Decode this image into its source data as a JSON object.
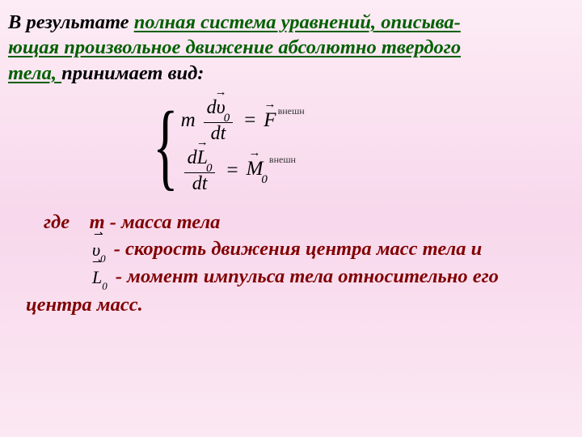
{
  "intro": {
    "lead": "В результате ",
    "ul1": "полная система уравнений, описыва-",
    "ul2": "ющая произвольное движение абсолютно твердого ",
    "ul3": "тела,",
    "tail_space": " ",
    "tail": "принимает вид:"
  },
  "equations": {
    "brace": "{",
    "eq1": {
      "m": "m",
      "frac_num_d": "d",
      "frac_num_sym": "υ",
      "frac_num_sub": "0",
      "frac_den": "dt",
      "eq": "=",
      "rhs_sym": "F",
      "rhs_sup": "внешн"
    },
    "eq2": {
      "frac_num_d": "d",
      "frac_num_sym": "L",
      "frac_num_sub": "0",
      "frac_den": "dt",
      "eq": "=",
      "rhs_sym": "M",
      "rhs_sub": "0",
      "rhs_sup": "внешн"
    }
  },
  "legend": {
    "where": "где",
    "m": "m",
    "l1": " - масса тела",
    "sym_v": "υ",
    "sym_v_sub": "0",
    "l2": " -  скорость движения центра масс тела и",
    "sym_L": "L",
    "sym_L_sub": "0",
    "l3": " -  момент импульса тела относительно его",
    "l4": "центра масс."
  },
  "style": {
    "bg_top": "#fcecf5",
    "bg_mid": "#f8d8ec",
    "bg_bot": "#fbe8f3",
    "green": "#006000",
    "maroon": "#800000",
    "font_family": "Times New Roman",
    "intro_fontsize": 24.5,
    "legend_fontsize": 24.5,
    "eq_fontsize": 25
  }
}
